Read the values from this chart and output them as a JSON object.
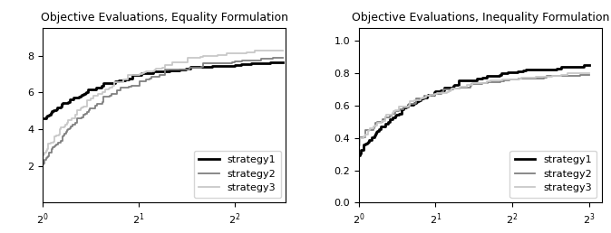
{
  "left_title": "Objective Evaluations, Equality Formulation",
  "right_title": "Objective Evaluations, Inequality Formulation",
  "colors": [
    "#000000",
    "#808080",
    "#c8c8c8"
  ],
  "linewidths": [
    2.0,
    1.3,
    1.3
  ],
  "legend_labels": [
    "strategy1",
    "strategy2",
    "strategy3"
  ],
  "legend_loc": "lower right",
  "figsize": [
    6.74,
    2.58
  ],
  "dpi": 100,
  "title_fontsize": 9,
  "legend_fontsize": 8,
  "tick_fontsize": 8,
  "left_xlim": [
    1.0,
    5.8
  ],
  "left_ylim": [
    0,
    9.5
  ],
  "left_yticks": [
    2,
    4,
    6,
    8
  ],
  "left_xticks": [
    1,
    2,
    4
  ],
  "right_xlim": [
    1.0,
    9.0
  ],
  "right_ylim": [
    0.0,
    1.08
  ],
  "right_yticks": [
    0.0,
    0.2,
    0.4,
    0.6,
    0.8,
    1.0
  ],
  "right_xticks": [
    1,
    2,
    4,
    8
  ]
}
